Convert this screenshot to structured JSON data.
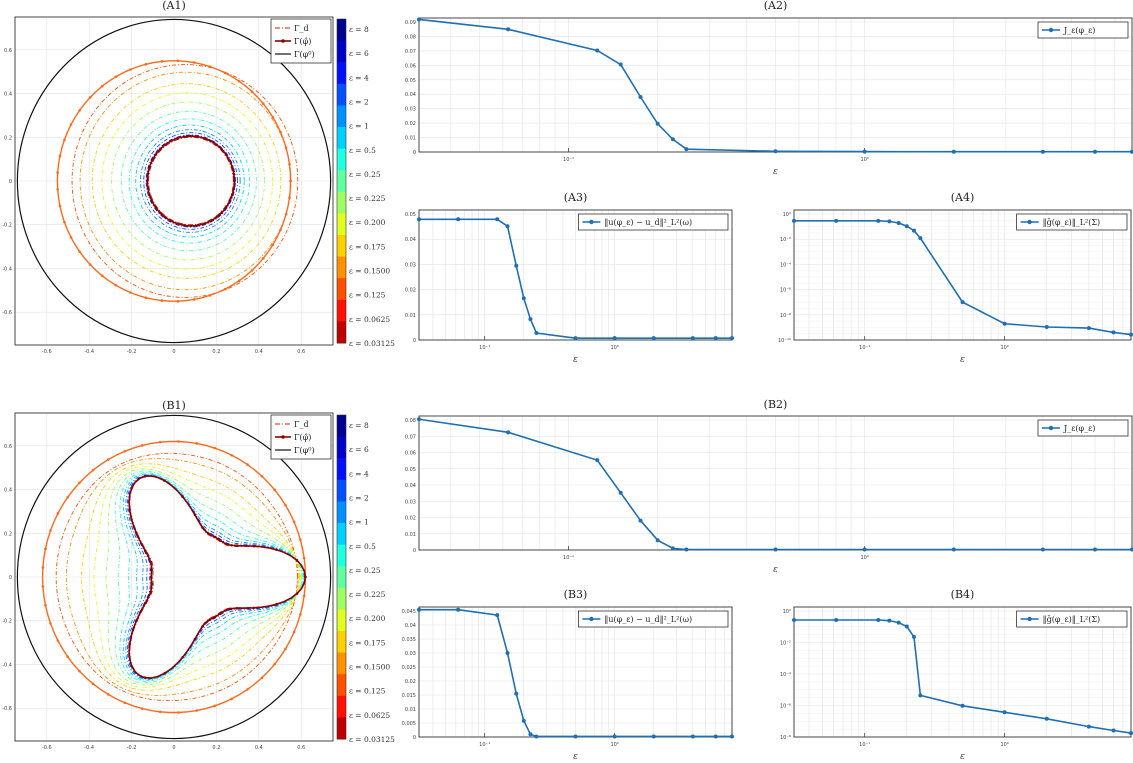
{
  "colors": {
    "series": "#1f6fb4",
    "outer_circle": "#111111",
    "target": "#cc2200",
    "reconstructed": "#8b0000",
    "grid": "#e3e3e3"
  },
  "colorbar_labels": [
    "ε = 8",
    "ε = 6",
    "ε = 4",
    "ε = 2",
    "ε = 1",
    "ε = 0.5",
    "ε = 0.25",
    "ε = 0.225",
    "ε = 0.200",
    "ε = 0.175",
    "ε = 0.1500",
    "ε = 0.125",
    "ε = 0.0625",
    "ε = 0.03125"
  ],
  "colorbar_colors": [
    "#00008f",
    "#0000c8",
    "#0010ff",
    "#0050ff",
    "#0090ff",
    "#00d0ff",
    "#20ffe0",
    "#60ff9f",
    "#a0ff60",
    "#e0ff20",
    "#ffd000",
    "#ff9000",
    "#ff5000",
    "#ff1000",
    "#c00000"
  ],
  "contour_legend": [
    "Γ_d",
    "Γ(φ̂)",
    "Γ(φ⁰)"
  ],
  "chart_data": [
    {
      "id": "A1",
      "title": "(A1)",
      "type": "scatter",
      "description": "shape contours",
      "xticks": [
        "-0.6",
        "-0.4",
        "-0.2",
        "0",
        "0.2",
        "0.4",
        "0.6"
      ],
      "yticks": [
        "0.6",
        "0.4",
        "0.2",
        "0",
        "-0.2",
        "-0.4",
        "-0.6"
      ],
      "outer_radius": 0.75,
      "initial_radius": 0.55,
      "target_shape": "circle"
    },
    {
      "id": "A2",
      "title": "(A2)",
      "type": "line",
      "xlabel": "ε",
      "xscale": "log",
      "legend": "J_ε(φ_ε)",
      "xticks": [
        "10⁻¹",
        "10⁰"
      ],
      "yticks": [
        "0.09",
        "0.08",
        "0.07",
        "0.06",
        "0.05",
        "0.04",
        "0.03",
        "0.02",
        "0.01",
        "0"
      ],
      "xlim": [
        0.03125,
        8
      ],
      "ylim": [
        0,
        0.095
      ],
      "x": [
        0.03125,
        0.0625,
        0.125,
        0.15,
        0.175,
        0.2,
        0.225,
        0.25,
        0.5,
        1,
        2,
        4,
        6,
        8
      ],
      "y": [
        0.094,
        0.087,
        0.072,
        0.062,
        0.039,
        0.02,
        0.009,
        0.002,
        0.0005,
        0.0003,
        0.0002,
        0.0002,
        0.0002,
        0.0002
      ]
    },
    {
      "id": "A3",
      "title": "(A3)",
      "type": "line",
      "xlabel": "ε",
      "xscale": "log",
      "legend": "‖u(φ_ε) − u_d‖²_L²(ω)",
      "xticks": [
        "10⁻¹",
        "10⁰"
      ],
      "yticks": [
        "0.05",
        "0.04",
        "0.03",
        "0.02",
        "0.01",
        "0"
      ],
      "xlim": [
        0.03125,
        8
      ],
      "ylim": [
        0,
        0.056
      ],
      "x": [
        0.03125,
        0.0625,
        0.125,
        0.15,
        0.175,
        0.2,
        0.225,
        0.25,
        0.5,
        1,
        2,
        4,
        6,
        8
      ],
      "y": [
        0.052,
        0.052,
        0.052,
        0.049,
        0.032,
        0.018,
        0.009,
        0.003,
        0.0008,
        0.0008,
        0.0008,
        0.0008,
        0.0008,
        0.0008
      ]
    },
    {
      "id": "A4",
      "title": "(A4)",
      "type": "line",
      "xlabel": "ε",
      "xscale": "log",
      "yscale": "log",
      "legend": "‖ḡ(φ_ε)‖_L²(Σ)",
      "xticks": [
        "10⁻¹",
        "10⁰"
      ],
      "yticks": [
        "10⁰",
        "10⁻²",
        "10⁻⁴",
        "10⁻⁶",
        "10⁻⁸",
        "10⁻¹⁰"
      ],
      "xlim": [
        0.03125,
        8
      ],
      "ylim_exp": [
        -11,
        1
      ],
      "x": [
        0.03125,
        0.0625,
        0.125,
        0.15,
        0.175,
        0.2,
        0.225,
        0.25,
        0.5,
        1,
        2,
        4,
        6,
        8
      ],
      "y_exp": [
        0,
        0,
        0,
        -0.05,
        -0.2,
        -0.5,
        -0.9,
        -1.6,
        -7.5,
        -9.5,
        -9.8,
        -9.9,
        -10.3,
        -10.5
      ]
    },
    {
      "id": "B1",
      "title": "(B1)",
      "type": "scatter",
      "description": "shape contours",
      "xticks": [
        "-0.6",
        "-0.4",
        "-0.2",
        "0",
        "0.2",
        "0.4",
        "0.6"
      ],
      "yticks": [
        "0.6",
        "0.4",
        "0.2",
        "0",
        "-0.2",
        "-0.4",
        "-0.6"
      ],
      "outer_radius": 0.75,
      "initial_radius": 0.62,
      "target_shape": "triangle"
    },
    {
      "id": "B2",
      "title": "(B2)",
      "type": "line",
      "xlabel": "ε",
      "xscale": "log",
      "legend": "J_ε(φ_ε)",
      "xticks": [
        "10⁻¹",
        "10⁰"
      ],
      "yticks": [
        "0.08",
        "0.07",
        "0.06",
        "0.05",
        "0.04",
        "0.03",
        "0.02",
        "0.01",
        "0"
      ],
      "xlim": [
        0.03125,
        8
      ],
      "ylim": [
        0,
        0.082
      ],
      "x": [
        0.03125,
        0.0625,
        0.125,
        0.15,
        0.175,
        0.2,
        0.225,
        0.25,
        0.5,
        1,
        2,
        4,
        6,
        8
      ],
      "y": [
        0.08,
        0.072,
        0.055,
        0.035,
        0.018,
        0.006,
        0.001,
        0.0003,
        0.0003,
        0.0003,
        0.0003,
        0.0003,
        0.0003,
        0.0003
      ]
    },
    {
      "id": "B3",
      "title": "(B3)",
      "type": "line",
      "xlabel": "ε",
      "xscale": "log",
      "legend": "‖u(φ_ε) − u_d‖²_L²(ω)",
      "xticks": [
        "10⁻¹",
        "10⁰"
      ],
      "yticks": [
        "0.045",
        "0.04",
        "0.035",
        "0.03",
        "0.025",
        "0.02",
        "0.015",
        "0.01",
        "0.005",
        "0"
      ],
      "xlim": [
        0.03125,
        8
      ],
      "ylim": [
        0,
        0.048
      ],
      "x": [
        0.03125,
        0.0625,
        0.125,
        0.15,
        0.175,
        0.2,
        0.225,
        0.25,
        0.5,
        1,
        2,
        4,
        6,
        8
      ],
      "y": [
        0.047,
        0.047,
        0.045,
        0.031,
        0.016,
        0.006,
        0.001,
        0.0002,
        0.0002,
        0.0002,
        0.0002,
        0.0002,
        0.0002,
        0.0002
      ]
    },
    {
      "id": "B4",
      "title": "(B4)",
      "type": "line",
      "xlabel": "ε",
      "xscale": "log",
      "yscale": "log",
      "legend": "‖ḡ(φ_ε)‖_L²(Σ)",
      "xticks": [
        "10⁻¹",
        "10⁰"
      ],
      "yticks": [
        "10⁰",
        "10⁻²",
        "10⁻⁴",
        "10⁻⁶",
        "10⁻⁸"
      ],
      "xlim": [
        0.03125,
        8
      ],
      "ylim_exp": [
        -9,
        1
      ],
      "x": [
        0.03125,
        0.0625,
        0.125,
        0.15,
        0.175,
        0.2,
        0.225,
        0.25,
        0.5,
        1,
        2,
        4,
        6,
        8
      ],
      "y_exp": [
        0,
        0,
        0,
        -0.05,
        -0.2,
        -0.5,
        -1.3,
        -5.8,
        -6.6,
        -7.1,
        -7.6,
        -8.2,
        -8.5,
        -8.7
      ]
    }
  ]
}
